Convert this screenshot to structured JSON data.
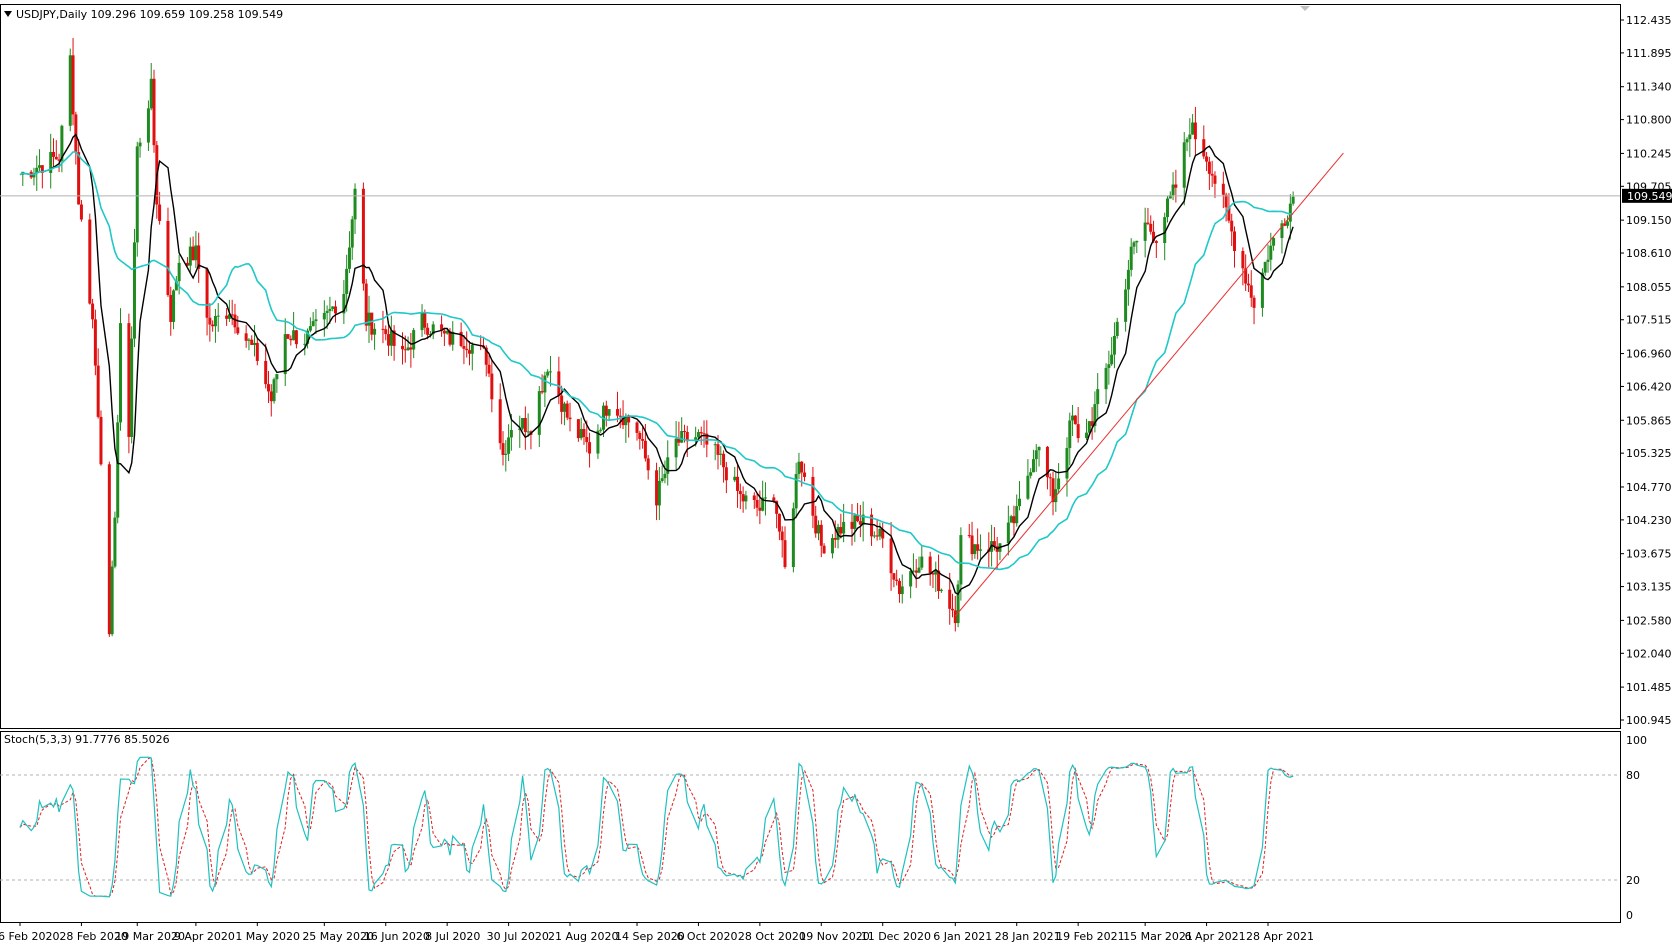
{
  "window": {
    "symbol_header": "USDJPY,Daily  109.296 109.659 109.258 109.549",
    "current_price_label": "109.549"
  },
  "indicator": {
    "header": "Stoch(5,3,3) 91.7776 85.5026",
    "levels": [
      20,
      80
    ],
    "scale_labels": [
      "100",
      "80",
      "20",
      "0"
    ]
  },
  "colors": {
    "bull_candle": "#1f8a1f",
    "bear_candle": "#e01010",
    "ma_fast": "#000000",
    "ma_slow": "#20c8c8",
    "trendline": "#e83030",
    "stoch_main": "#20c0c0",
    "stoch_signal": "#e02020",
    "grid_level": "#b0b0b0"
  },
  "chart_data": [
    {
      "type": "candlestick",
      "title": "USDJPY,Daily",
      "ohlc_last": {
        "open": 109.296,
        "high": 109.659,
        "low": 109.258,
        "close": 109.549
      },
      "ylim": [
        100.945,
        112.435
      ],
      "y_ticks": [
        "112.435",
        "111.895",
        "111.340",
        "110.800",
        "110.245",
        "109.705",
        "109.150",
        "108.610",
        "108.055",
        "107.515",
        "106.960",
        "106.420",
        "105.865",
        "105.325",
        "104.770",
        "104.230",
        "103.675",
        "103.135",
        "102.580",
        "102.040",
        "101.485",
        "100.945"
      ],
      "x_ticks": [
        "6 Feb 2020",
        "28 Feb 2020",
        "19 Mar 2020",
        "9 Apr 2020",
        "1 May 2020",
        "25 May 2020",
        "16 Jun 2020",
        "8 Jul 2020",
        "30 Jul 2020",
        "21 Aug 2020",
        "14 Sep 2020",
        "6 Oct 2020",
        "28 Oct 2020",
        "19 Nov 2020",
        "11 Dec 2020",
        "6 Jan 2021",
        "28 Jan 2021",
        "19 Feb 2021",
        "15 Mar 2021",
        "6 Apr 2021",
        "28 Apr 2021"
      ],
      "current_price": 109.549,
      "close_path": [
        [
          "6 Feb 2020",
          109.9
        ],
        [
          "20 Feb 2020",
          110.2
        ],
        [
          "24 Feb 2020",
          111.8
        ],
        [
          "27 Feb 2020",
          109.5
        ],
        [
          "3 Mar 2020",
          107.5
        ],
        [
          "6 Mar 2020",
          105.3
        ],
        [
          "9 Mar 2020",
          102.2
        ],
        [
          "11 Mar 2020",
          104.4
        ],
        [
          "13 Mar 2020",
          107.3
        ],
        [
          "16 Mar 2020",
          105.7
        ],
        [
          "19 Mar 2020",
          110.3
        ],
        [
          "24 Mar 2020",
          111.3
        ],
        [
          "26 Mar 2020",
          109.5
        ],
        [
          "31 Mar 2020",
          107.6
        ],
        [
          "3 Apr 2020",
          108.5
        ],
        [
          "9 Apr 2020",
          108.6
        ],
        [
          "14 Apr 2020",
          107.4
        ],
        [
          "21 Apr 2020",
          107.7
        ],
        [
          "27 Apr 2020",
          107.2
        ],
        [
          "1 May 2020",
          106.9
        ],
        [
          "6 May 2020",
          106.2
        ],
        [
          "11 May 2020",
          107.3
        ],
        [
          "18 May 2020",
          107.2
        ],
        [
          "25 May 2020",
          107.5
        ],
        [
          "1 Jun 2020",
          108.0
        ],
        [
          "5 Jun 2020",
          109.6
        ],
        [
          "9 Jun 2020",
          107.5
        ],
        [
          "16 Jun 2020",
          107.3
        ],
        [
          "22 Jun 2020",
          106.9
        ],
        [
          "29 Jun 2020",
          107.5
        ],
        [
          "8 Jul 2020",
          107.2
        ],
        [
          "14 Jul 2020",
          107.2
        ],
        [
          "22 Jul 2020",
          106.9
        ],
        [
          "28 Jul 2020",
          105.3
        ],
        [
          "31 Jul 2020",
          105.8
        ],
        [
          "7 Aug 2020",
          105.8
        ],
        [
          "13 Aug 2020",
          106.8
        ],
        [
          "21 Aug 2020",
          105.8
        ],
        [
          "28 Aug 2020",
          105.4
        ],
        [
          "4 Sep 2020",
          106.2
        ],
        [
          "14 Sep 2020",
          105.7
        ],
        [
          "21 Sep 2020",
          104.6
        ],
        [
          "28 Sep 2020",
          105.5
        ],
        [
          "6 Oct 2020",
          105.6
        ],
        [
          "14 Oct 2020",
          105.2
        ],
        [
          "21 Oct 2020",
          104.6
        ],
        [
          "28 Oct 2020",
          104.4
        ],
        [
          "2 Nov 2020",
          104.7
        ],
        [
          "6 Nov 2020",
          103.4
        ],
        [
          "11 Nov 2020",
          105.3
        ],
        [
          "19 Nov 2020",
          103.8
        ],
        [
          "26 Nov 2020",
          104.1
        ],
        [
          "4 Dec 2020",
          104.2
        ],
        [
          "11 Dec 2020",
          103.9
        ],
        [
          "17 Dec 2020",
          103.1
        ],
        [
          "24 Dec 2020",
          103.6
        ],
        [
          "31 Dec 2020",
          103.2
        ],
        [
          "6 Jan 2021",
          102.7
        ],
        [
          "8 Jan 2021",
          103.9
        ],
        [
          "14 Jan 2021",
          103.8
        ],
        [
          "22 Jan 2021",
          103.8
        ],
        [
          "28 Jan 2021",
          104.3
        ],
        [
          "4 Feb 2021",
          105.5
        ],
        [
          "10 Feb 2021",
          104.6
        ],
        [
          "17 Feb 2021",
          105.9
        ],
        [
          "19 Feb 2021",
          105.5
        ],
        [
          "24 Feb 2021",
          105.9
        ],
        [
          "3 Mar 2021",
          107.0
        ],
        [
          "10 Mar 2021",
          108.6
        ],
        [
          "15 Mar 2021",
          109.1
        ],
        [
          "19 Mar 2021",
          108.9
        ],
        [
          "26 Mar 2021",
          109.7
        ],
        [
          "31 Mar 2021",
          110.7
        ],
        [
          "6 Apr 2021",
          110.2
        ],
        [
          "12 Apr 2021",
          109.4
        ],
        [
          "16 Apr 2021",
          108.8
        ],
        [
          "23 Apr 2021",
          107.8
        ],
        [
          "28 Apr 2021",
          108.6
        ],
        [
          "5 May 2021",
          109.3
        ],
        [
          "7 May 2021",
          109.549
        ]
      ],
      "series": [
        {
          "name": "ma_fast",
          "color": "#000000"
        },
        {
          "name": "ma_slow",
          "color": "#20c8c8"
        }
      ],
      "annotations": [
        {
          "type": "trendline",
          "color": "#e83030",
          "from": [
            "6 Jan 2021",
            102.65
          ],
          "to": [
            "25 May 2021",
            110.25
          ]
        },
        {
          "type": "hline",
          "value": 109.549,
          "color": "#b0b0b0"
        }
      ]
    },
    {
      "type": "line",
      "title": "Stoch(5,3,3)",
      "ylim": [
        0,
        100
      ],
      "levels": [
        20,
        80
      ],
      "latest": {
        "main": 91.7776,
        "signal": 85.5026
      },
      "series": [
        {
          "name": "main",
          "color": "#20c0c0",
          "style": "solid"
        },
        {
          "name": "signal",
          "color": "#e02020",
          "style": "dashed"
        }
      ]
    }
  ]
}
